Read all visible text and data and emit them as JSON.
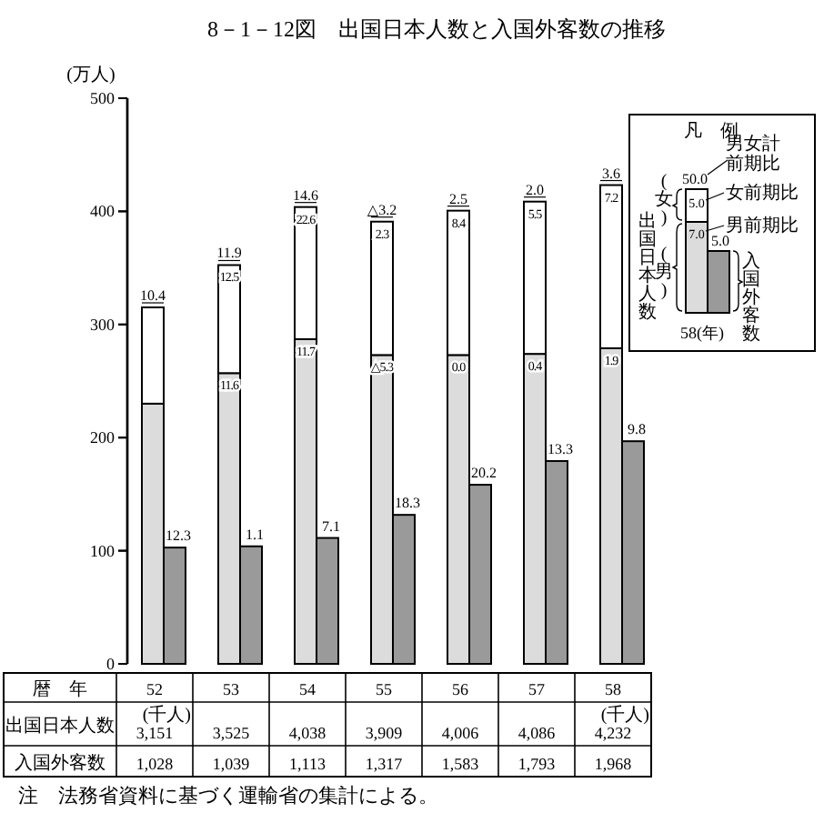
{
  "chart_data": [
    {
      "type": "bar",
      "title": "8－1－12図　出国日本人数と入国外客数の推移",
      "ylabel": "(万人)",
      "legend_title": "凡　例",
      "categories": [
        "52",
        "53",
        "54",
        "55",
        "56",
        "57",
        "58"
      ],
      "legend": "top right",
      "stacked": true,
      "grid": false,
      "ylim": [
        0,
        500
      ],
      "yticks": [
        0,
        100,
        200,
        300,
        400,
        500
      ],
      "series": [
        {
          "name": "(男)",
          "color": "#dcdcdc",
          "values": [
            230,
            257,
            287,
            273,
            273,
            274,
            279
          ]
        },
        {
          "name": "(女)",
          "color": "#ffffff",
          "values": [
            85.1,
            95.5,
            116.8,
            117.9,
            127.6,
            134.6,
            144.2
          ]
        }
      ],
      "annotations": [
        {
          "text": "10.4",
          "x": "52",
          "y": 315.1
        },
        {
          "text": "11.9",
          "x": "53",
          "y": 352.5
        },
        {
          "text": "14.6",
          "x": "54",
          "y": 403.8
        },
        {
          "text": "△3.2",
          "x": "55",
          "y": 390.9
        },
        {
          "text": "2.5",
          "x": "56",
          "y": 400.6
        },
        {
          "text": "2.0",
          "x": "57",
          "y": 408.6
        },
        {
          "text": "3.6",
          "x": "58",
          "y": 423.2
        },
        {
          "text": "12.5",
          "x": "53",
          "y": 352.5
        },
        {
          "text": "22.6",
          "x": "54",
          "y": 403.8
        },
        {
          "text": "2.3",
          "x": "55",
          "y": 390.9
        },
        {
          "text": "8.4",
          "x": "56",
          "y": 400.6
        },
        {
          "text": "5.5",
          "x": "57",
          "y": 408.6
        },
        {
          "text": "7.2",
          "x": "58",
          "y": 423.2
        },
        {
          "text": "11.6",
          "x": "53",
          "y": 257
        },
        {
          "text": "11.7",
          "x": "54",
          "y": 287
        },
        {
          "text": "△5.3",
          "x": "55",
          "y": 273
        },
        {
          "text": "0.0",
          "x": "56",
          "y": 273
        },
        {
          "text": "0.4",
          "x": "57",
          "y": 274
        },
        {
          "text": "1.9",
          "x": "58",
          "y": 279
        },
        "注　法務省資料に基づく運輸省の集計による。",
        "男女計",
        "前期比",
        "女前期比",
        "男前期比",
        "50.0",
        "5.0",
        "7.0",
        "5.0",
        "58(年)",
        "出国日本人数",
        "暦　年",
        "出国日本人数",
        "3,151",
        "3,525",
        "4,038",
        "3,909",
        "4,006",
        "4,086",
        "4,232",
        "入国外客数",
        "1,028",
        "1,039",
        "1,113",
        "1,317",
        "1,583",
        "1,793",
        "1,968",
        "(千人)",
        "(千人)"
      ]
    },
    {
      "type": "bar",
      "categories": [
        "52",
        "53",
        "54",
        "55",
        "56",
        "57",
        "58"
      ],
      "ylim": [
        0,
        500
      ],
      "yticks": [
        0,
        100,
        200,
        300,
        400,
        500
      ],
      "tick_labels": false,
      "series": [
        {
          "name": "入国外客数",
          "color": "#9a9a9a",
          "values": [
            102.8,
            103.9,
            111.3,
            131.7,
            158.3,
            179.3,
            196.8
          ]
        }
      ],
      "annotations": [
        "12.3",
        "1.1",
        "7.1",
        "18.3",
        "20.2",
        "13.3",
        "9.8"
      ]
    }
  ]
}
